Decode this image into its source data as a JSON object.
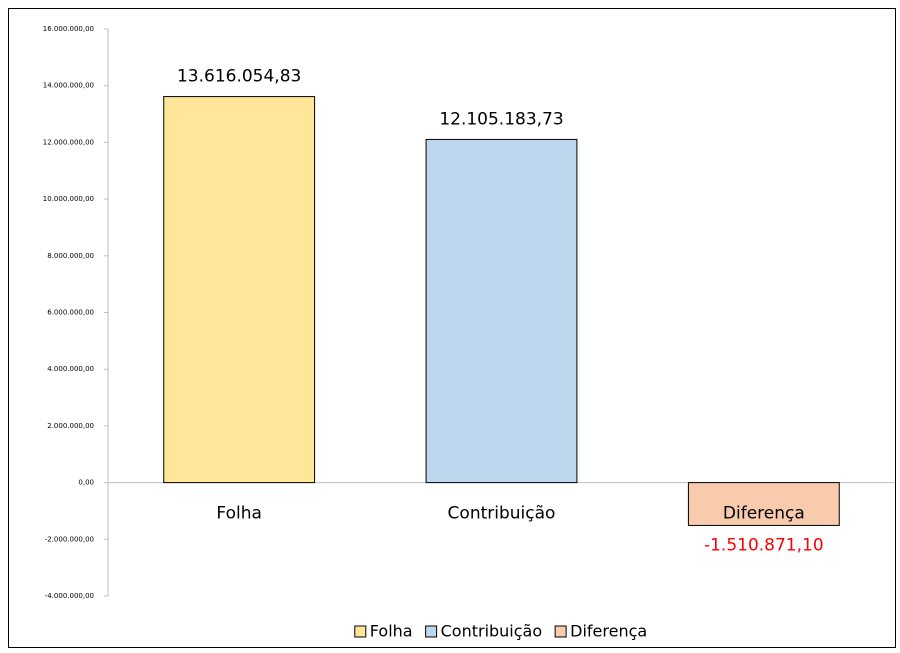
{
  "chart_data": {
    "type": "bar",
    "categories": [
      "Folha",
      "Contribuição",
      "Diferença"
    ],
    "values": [
      13616054.83,
      12105183.73,
      -1510871.1
    ],
    "value_labels": [
      "13.616.054,83",
      "12.105.183,73",
      "-1.510.871,10"
    ],
    "colors": [
      "#ffe699",
      "#bdd7ee",
      "#f8cbad"
    ],
    "negative_label_color": "#ff0000",
    "legend": "bottom",
    "ylim": [
      -4000000,
      16000000
    ],
    "yticks": [
      {
        "value": -4000000,
        "label": "-4.000.000,00"
      },
      {
        "value": -2000000,
        "label": "-2.000.000,00"
      },
      {
        "value": 0,
        "label": "0,00"
      },
      {
        "value": 2000000,
        "label": "2.000.000,00"
      },
      {
        "value": 4000000,
        "label": "4.000.000,00"
      },
      {
        "value": 6000000,
        "label": "6.000.000,00"
      },
      {
        "value": 8000000,
        "label": "8.000.000,00"
      },
      {
        "value": 10000000,
        "label": "10.000.000,00"
      },
      {
        "value": 12000000,
        "label": "12.000.000,00"
      },
      {
        "value": 14000000,
        "label": "14.000.000,00"
      },
      {
        "value": 16000000,
        "label": "16.000.000,00"
      }
    ]
  }
}
